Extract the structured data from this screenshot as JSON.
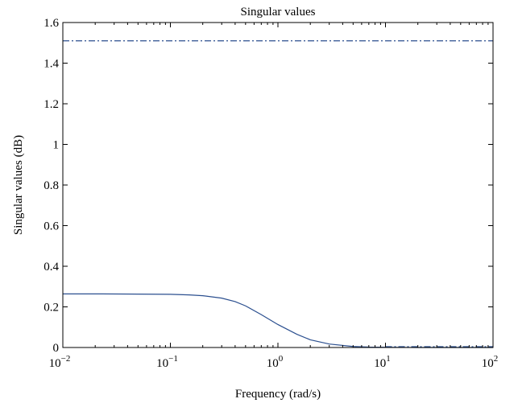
{
  "chart_data": {
    "type": "line",
    "title": "Singular values",
    "xlabel": "Frequency (rad/s)",
    "ylabel": "Singular values (dB)",
    "x_scale": "log",
    "xlim": [
      0.01,
      100
    ],
    "ylim": [
      0,
      1.6
    ],
    "grid": false,
    "x_ticks": [
      {
        "value": 0.01,
        "base": "10",
        "exp": "−2"
      },
      {
        "value": 0.1,
        "base": "10",
        "exp": "−1"
      },
      {
        "value": 1,
        "base": "10",
        "exp": "0"
      },
      {
        "value": 10,
        "base": "10",
        "exp": "1"
      },
      {
        "value": 100,
        "base": "10",
        "exp": "2"
      }
    ],
    "y_ticks": [
      {
        "value": 0,
        "label": "0"
      },
      {
        "value": 0.2,
        "label": "0.2"
      },
      {
        "value": 0.4,
        "label": "0.4"
      },
      {
        "value": 0.6,
        "label": "0.6"
      },
      {
        "value": 0.8,
        "label": "0.8"
      },
      {
        "value": 1,
        "label": "1"
      },
      {
        "value": 1.2,
        "label": "1.2"
      },
      {
        "value": 1.4,
        "label": "1.4"
      },
      {
        "value": 1.6,
        "label": "1.6"
      }
    ],
    "series": [
      {
        "style": "solid",
        "color": "#2b4f8f",
        "x": [
          0.01,
          0.02,
          0.05,
          0.1,
          0.15,
          0.2,
          0.3,
          0.4,
          0.5,
          0.7,
          1.0,
          1.5,
          2.0,
          3.0,
          5.0,
          7.0,
          10,
          20,
          50,
          100
        ],
        "y": [
          0.264,
          0.264,
          0.263,
          0.262,
          0.259,
          0.255,
          0.243,
          0.226,
          0.205,
          0.162,
          0.113,
          0.065,
          0.038,
          0.017,
          0.005,
          0.002,
          0.001,
          0.0,
          0.0,
          0.0
        ]
      },
      {
        "style": "dashdot",
        "color": "#2b4f8f",
        "x": [
          0.01,
          100
        ],
        "y": [
          1.51,
          1.51
        ]
      },
      {
        "style": "dashdot",
        "color": "#2b4f8f",
        "x": [
          10,
          100
        ],
        "y": [
          0.004,
          0.004
        ]
      }
    ]
  }
}
